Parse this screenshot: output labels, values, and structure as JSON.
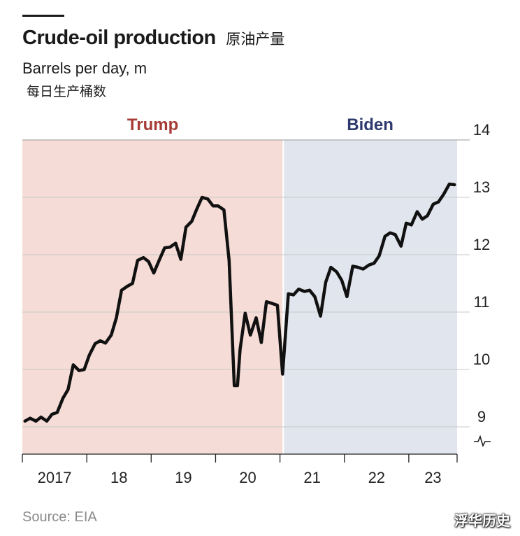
{
  "header": {
    "title": "Crude-oil production",
    "title_cn": "原油产量",
    "subtitle": "Barrels per day, m",
    "subtitle_cn": "每日生产桶数"
  },
  "footer": {
    "source": "Source: EIA",
    "watermark": "浮华历史"
  },
  "chart_data": {
    "type": "line",
    "title": "Crude-oil production",
    "ylabel": "Barrels per day, m",
    "ylim": [
      8.6,
      14
    ],
    "y_ticks": [
      9,
      10,
      11,
      12,
      13,
      14
    ],
    "y_axis_broken": true,
    "y_axis_side": "right",
    "grid": true,
    "x_tick_labels": [
      "2017",
      "18",
      "19",
      "20",
      "21",
      "22",
      "23"
    ],
    "xlim": [
      2017.0,
      2023.75
    ],
    "line_color": "#111111",
    "periods": [
      {
        "label": "Trump",
        "start": 2017.0,
        "end": 2021.05,
        "fill": "#f5dcd6",
        "label_color": "#a63b35"
      },
      {
        "label": "Biden",
        "start": 2021.05,
        "end": 2023.75,
        "fill": "#e1e6ee",
        "label_color": "#2e3a6e"
      }
    ],
    "series": [
      {
        "x": [
          2017.04,
          2017.12,
          2017.21,
          2017.29,
          2017.38,
          2017.46,
          2017.54,
          2017.63,
          2017.71,
          2017.79,
          2017.88,
          2017.96,
          2018.04,
          2018.13,
          2018.21,
          2018.29,
          2018.38,
          2018.46,
          2018.54,
          2018.63,
          2018.71,
          2018.79,
          2018.88,
          2018.96,
          2019.04,
          2019.13,
          2019.21,
          2019.29,
          2019.38,
          2019.46,
          2019.54,
          2019.63,
          2019.71,
          2019.79,
          2019.88,
          2019.96,
          2020.04,
          2020.13,
          2020.21,
          2020.29,
          2020.34,
          2020.38,
          2020.46,
          2020.54,
          2020.63,
          2020.71,
          2020.79,
          2020.88,
          2020.96,
          2021.04,
          2021.13,
          2021.21,
          2021.29,
          2021.38,
          2021.46,
          2021.54,
          2021.63,
          2021.71,
          2021.79,
          2021.88,
          2021.96,
          2022.04,
          2022.13,
          2022.21,
          2022.29,
          2022.38,
          2022.46,
          2022.54,
          2022.63,
          2022.71,
          2022.79,
          2022.88,
          2022.96,
          2023.04,
          2023.13,
          2023.21,
          2023.29,
          2023.38,
          2023.46,
          2023.54,
          2023.63,
          2023.71
        ],
        "values": [
          9.1,
          9.15,
          9.1,
          9.17,
          9.1,
          9.22,
          9.25,
          9.5,
          9.65,
          10.08,
          9.98,
          10.0,
          10.25,
          10.45,
          10.5,
          10.46,
          10.6,
          10.9,
          11.38,
          11.45,
          11.5,
          11.9,
          11.95,
          11.88,
          11.68,
          11.92,
          12.12,
          12.13,
          12.2,
          11.92,
          12.48,
          12.58,
          12.8,
          13.0,
          12.97,
          12.85,
          12.85,
          12.78,
          11.9,
          9.72,
          9.72,
          10.35,
          10.98,
          10.6,
          10.9,
          10.47,
          11.18,
          11.15,
          11.12,
          9.92,
          11.32,
          11.3,
          11.4,
          11.36,
          11.38,
          11.27,
          10.93,
          11.52,
          11.78,
          11.7,
          11.55,
          11.27,
          11.8,
          11.78,
          11.75,
          11.82,
          11.85,
          11.98,
          12.32,
          12.38,
          12.35,
          12.15,
          12.55,
          12.52,
          12.75,
          12.62,
          12.68,
          12.88,
          12.92,
          13.05,
          13.23,
          13.22
        ]
      }
    ]
  }
}
